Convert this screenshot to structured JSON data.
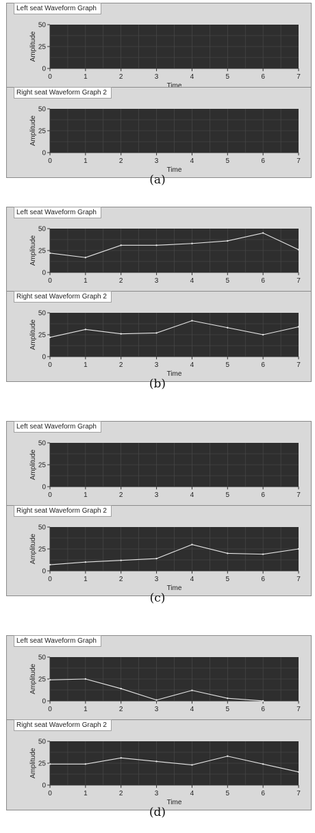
{
  "figures": [
    {
      "caption": "(a)",
      "graphs": [
        {
          "title": "Left seat Waveform Graph",
          "series_values": [],
          "xlabel": "Time"
        },
        {
          "title": "Right seat Waveform Graph 2",
          "series_values": [],
          "xlabel": "Time"
        }
      ]
    },
    {
      "caption": "(b)",
      "graphs": [
        {
          "title": "Left seat Waveform Graph",
          "series_values": [
            22,
            17,
            31,
            31,
            33,
            36,
            45,
            26
          ],
          "xlabel": ""
        },
        {
          "title": "Right seat Waveform Graph 2",
          "series_values": [
            22,
            31,
            26,
            27,
            41,
            33,
            25,
            34
          ],
          "xlabel": "Time"
        }
      ]
    },
    {
      "caption": "(c)",
      "graphs": [
        {
          "title": "Left seat Waveform Graph",
          "series_values": [],
          "xlabel": ""
        },
        {
          "title": "Right seat Waveform Graph 2",
          "series_values": [
            7,
            10,
            12,
            14,
            30,
            20,
            19,
            25
          ],
          "xlabel": "Time"
        }
      ]
    },
    {
      "caption": "(d)",
      "graphs": [
        {
          "title": "Left seat Waveform Graph",
          "series_values": [
            24,
            25,
            14,
            1,
            12,
            3,
            0
          ],
          "xlabel": ""
        },
        {
          "title": "Right seat Waveform Graph 2",
          "series_values": [
            24,
            24,
            31,
            27,
            23,
            33,
            24,
            15
          ],
          "xlabel": "Time"
        }
      ]
    }
  ],
  "chart_data": [
    {
      "type": "line",
      "title": "Left seat Waveform Graph",
      "ylabel": "Amplitude",
      "xlabel": "Time",
      "x": [],
      "values": [],
      "xlim": [
        0,
        7
      ],
      "ylim": [
        0,
        50
      ],
      "x_ticks": [
        0,
        1,
        2,
        3,
        4,
        5,
        6,
        7
      ],
      "y_ticks": [
        0,
        25,
        50
      ],
      "grid": true
    },
    {
      "type": "line",
      "title": "Right seat Waveform Graph 2",
      "ylabel": "Amplitude",
      "xlabel": "Time",
      "x": [],
      "values": [],
      "xlim": [
        0,
        7
      ],
      "ylim": [
        0,
        50
      ],
      "x_ticks": [
        0,
        1,
        2,
        3,
        4,
        5,
        6,
        7
      ],
      "y_ticks": [
        0,
        25,
        50
      ],
      "grid": true
    },
    {
      "type": "line",
      "title": "Left seat Waveform Graph",
      "ylabel": "Amplitude",
      "x": [
        0,
        1,
        2,
        3,
        4,
        5,
        6,
        7
      ],
      "values": [
        22,
        17,
        31,
        31,
        33,
        36,
        45,
        26
      ],
      "xlim": [
        0,
        7
      ],
      "ylim": [
        0,
        50
      ],
      "x_ticks": [
        0,
        1,
        2,
        3,
        4,
        5,
        6,
        7
      ],
      "y_ticks": [
        0,
        25,
        50
      ],
      "grid": true
    },
    {
      "type": "line",
      "title": "Right seat Waveform Graph 2",
      "ylabel": "Amplitude",
      "xlabel": "Time",
      "x": [
        0,
        1,
        2,
        3,
        4,
        5,
        6,
        7
      ],
      "values": [
        22,
        31,
        26,
        27,
        41,
        33,
        25,
        34
      ],
      "xlim": [
        0,
        7
      ],
      "ylim": [
        0,
        50
      ],
      "x_ticks": [
        0,
        1,
        2,
        3,
        4,
        5,
        6,
        7
      ],
      "y_ticks": [
        0,
        25,
        50
      ],
      "grid": true
    },
    {
      "type": "line",
      "title": "Left seat Waveform Graph",
      "ylabel": "Amplitude",
      "x": [],
      "values": [],
      "xlim": [
        0,
        7
      ],
      "ylim": [
        0,
        50
      ],
      "x_ticks": [
        0,
        1,
        2,
        3,
        4,
        5,
        6,
        7
      ],
      "y_ticks": [
        0,
        25,
        50
      ],
      "grid": true
    },
    {
      "type": "line",
      "title": "Right seat Waveform Graph 2",
      "ylabel": "Amplitude",
      "xlabel": "Time",
      "x": [
        0,
        1,
        2,
        3,
        4,
        5,
        6,
        7
      ],
      "values": [
        7,
        10,
        12,
        14,
        30,
        20,
        19,
        25
      ],
      "xlim": [
        0,
        7
      ],
      "ylim": [
        0,
        50
      ],
      "x_ticks": [
        0,
        1,
        2,
        3,
        4,
        5,
        6,
        7
      ],
      "y_ticks": [
        0,
        25,
        50
      ],
      "grid": true
    },
    {
      "type": "line",
      "title": "Left seat Waveform Graph",
      "ylabel": "Amplitude",
      "x": [
        0,
        1,
        2,
        3,
        4,
        5,
        6
      ],
      "values": [
        24,
        25,
        14,
        1,
        12,
        3,
        0
      ],
      "xlim": [
        0,
        7
      ],
      "ylim": [
        0,
        50
      ],
      "x_ticks": [
        0,
        1,
        2,
        3,
        4,
        5,
        6,
        7
      ],
      "y_ticks": [
        0,
        25,
        50
      ],
      "grid": true
    },
    {
      "type": "line",
      "title": "Right seat Waveform Graph 2",
      "ylabel": "Amplitude",
      "xlabel": "Time",
      "x": [
        0,
        1,
        2,
        3,
        4,
        5,
        6,
        7
      ],
      "values": [
        24,
        24,
        31,
        27,
        23,
        33,
        24,
        15
      ],
      "xlim": [
        0,
        7
      ],
      "ylim": [
        0,
        50
      ],
      "x_ticks": [
        0,
        1,
        2,
        3,
        4,
        5,
        6,
        7
      ],
      "y_ticks": [
        0,
        25,
        50
      ],
      "grid": true
    }
  ],
  "axis": {
    "ylabel": "Amplitude",
    "x_ticks": [
      "0",
      "1",
      "2",
      "3",
      "4",
      "5",
      "6",
      "7"
    ],
    "y_ticks": [
      "50",
      "25",
      "0"
    ]
  },
  "colors": {
    "plot_background": "#2e2e2e",
    "grid": "#4d4d4d",
    "trace": "#e8e8e8",
    "panel": "#d9d9d9"
  }
}
